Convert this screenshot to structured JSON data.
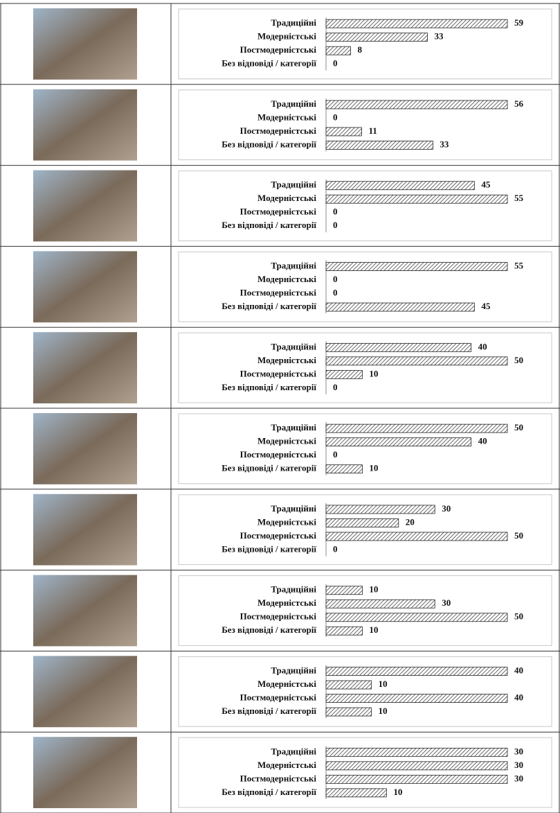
{
  "chart_data": [
    {
      "type": "bar",
      "categories": [
        "Традиційні",
        "Модерністські",
        "Постмодерністські",
        "Без відповіді / категорії"
      ],
      "values": [
        59,
        33,
        8,
        0
      ]
    },
    {
      "type": "bar",
      "categories": [
        "Традиційні",
        "Модерністські",
        "Постмодерністські",
        "Без відповіді / категорії"
      ],
      "values": [
        56,
        0,
        11,
        33
      ]
    },
    {
      "type": "bar",
      "categories": [
        "Традиційні",
        "Модерністські",
        "Постмодерністські",
        "Без відповіді / категорії"
      ],
      "values": [
        45,
        55,
        0,
        0
      ]
    },
    {
      "type": "bar",
      "categories": [
        "Традиційні",
        "Модерністські",
        "Постмодерністські",
        "Без відповіді / категорії"
      ],
      "values": [
        55,
        0,
        0,
        45
      ]
    },
    {
      "type": "bar",
      "categories": [
        "Традиційні",
        "Модерністські",
        "Постмодерністські",
        "Без відповіді / категорії"
      ],
      "values": [
        40,
        50,
        10,
        0
      ]
    },
    {
      "type": "bar",
      "categories": [
        "Традиційні",
        "Модерністські",
        "Постмодерністські",
        "Без відповіді / категорії"
      ],
      "values": [
        50,
        40,
        0,
        10
      ]
    },
    {
      "type": "bar",
      "categories": [
        "Традиційні",
        "Модерністські",
        "Постмодерністські",
        "Без відповіді / категорії"
      ],
      "values": [
        30,
        20,
        50,
        0
      ]
    },
    {
      "type": "bar",
      "categories": [
        "Традиційні",
        "Модерністські",
        "Постмодерністські",
        "Без відповіді / категорії"
      ],
      "values": [
        10,
        30,
        50,
        10
      ]
    },
    {
      "type": "bar",
      "categories": [
        "Традиційні",
        "Модерністські",
        "Постмодерністські",
        "Без відповіді / категорії"
      ],
      "values": [
        40,
        10,
        40,
        10
      ]
    },
    {
      "type": "bar",
      "categories": [
        "Традиційні",
        "Модерністські",
        "Постмодерністські",
        "Без відповіді / категорії"
      ],
      "values": [
        30,
        30,
        30,
        10
      ]
    }
  ]
}
